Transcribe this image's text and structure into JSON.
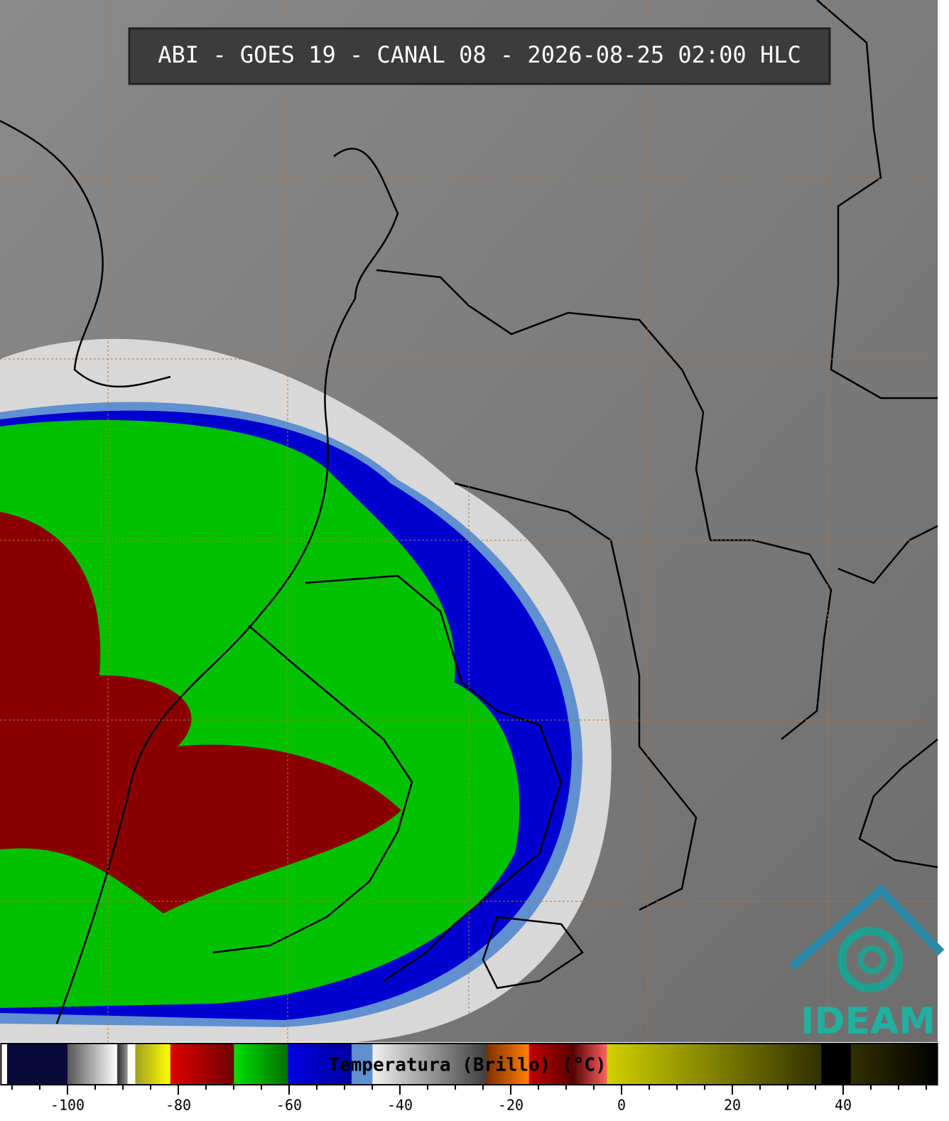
{
  "header": {
    "title": "ABI - GOES 19 - CANAL 08 - 2026-08-25 02:00 HLC"
  },
  "colorbar": {
    "label": "Temperatura (Brillo) (°C)",
    "range": [
      -112,
      57
    ],
    "ticks": [
      -100,
      -80,
      -60,
      -40,
      -20,
      0,
      20,
      40
    ],
    "minor_ticks": [
      -110,
      -105,
      -95,
      -90,
      -85,
      -75,
      -70,
      -65,
      -55,
      -50,
      -45,
      -35,
      -30,
      -25,
      -15,
      -10,
      -5,
      5,
      10,
      15,
      25,
      30,
      35,
      45,
      50,
      55
    ]
  },
  "logo": {
    "text": "IDEAM"
  }
}
